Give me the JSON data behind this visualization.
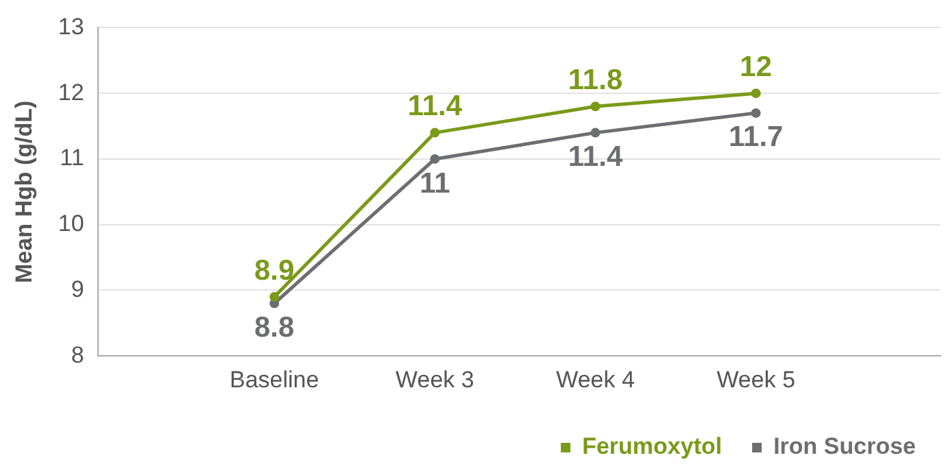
{
  "chart_data": {
    "type": "line",
    "ylabel": "Mean Hgb (g/dL)",
    "categories": [
      "Baseline",
      "Week 3",
      "Week 4",
      "Week 5"
    ],
    "series": [
      {
        "name": "Ferumoxytol",
        "color": "#7a9a1a",
        "values": [
          8.9,
          11.4,
          11.8,
          12
        ]
      },
      {
        "name": "Iron Sucrose",
        "color": "#6d6e71",
        "values": [
          8.8,
          11,
          11.4,
          11.7
        ]
      }
    ],
    "ylim": [
      8,
      13
    ],
    "yticks": [
      8,
      9,
      10,
      11,
      12,
      13
    ],
    "grid": "y",
    "legend": "bottom right",
    "marker": "circle",
    "line_style": "solid",
    "data_labels": true
  }
}
